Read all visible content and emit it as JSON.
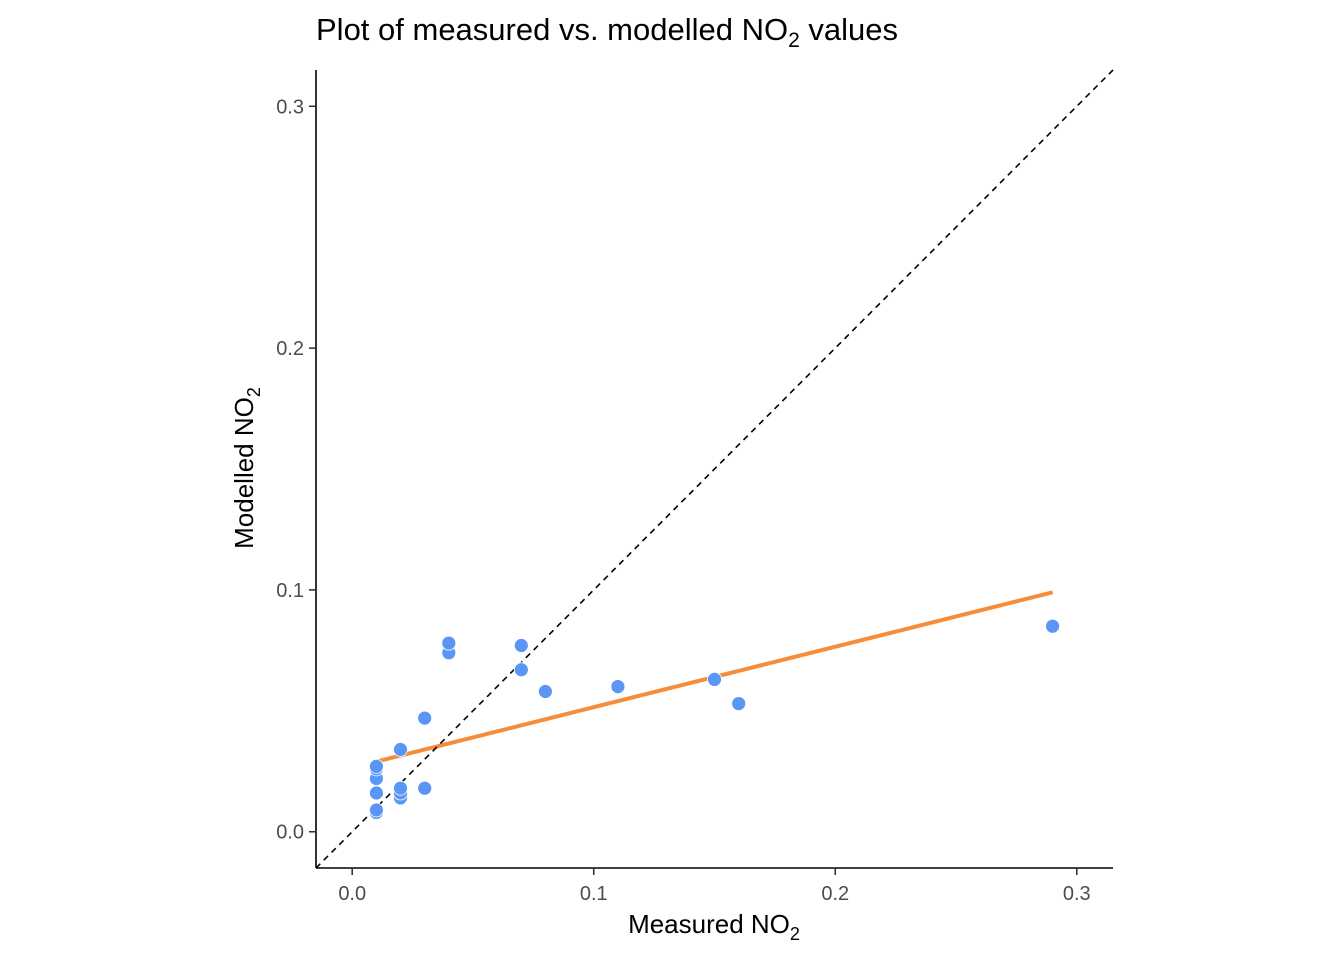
{
  "chart_data": {
    "type": "scatter",
    "title": "Plot of measured vs. modelled NO2 values",
    "title_parts": {
      "main": "Plot of measured vs. modelled NO",
      "sub": "2",
      "tail": " values"
    },
    "xlabel": "Measured NO2",
    "xlabel_parts": {
      "main": "Measured NO",
      "sub": "2"
    },
    "ylabel": "Modelled NO2",
    "ylabel_parts": {
      "main": "Modelled NO",
      "sub": "2"
    },
    "xlim": [
      -0.015,
      0.315
    ],
    "ylim": [
      -0.015,
      0.315
    ],
    "x_ticks": [
      0.0,
      0.1,
      0.2,
      0.3
    ],
    "x_tick_labels": [
      "0.0",
      "0.1",
      "0.2",
      "0.3"
    ],
    "y_ticks": [
      0.0,
      0.1,
      0.2,
      0.3
    ],
    "y_tick_labels": [
      "0.0",
      "0.1",
      "0.2",
      "0.3"
    ],
    "grid": false,
    "series": [
      {
        "type": "scatter",
        "color": "#5B96F7",
        "x": [
          0.01,
          0.01,
          0.01,
          0.01,
          0.01,
          0.01,
          0.02,
          0.02,
          0.02,
          0.02,
          0.03,
          0.03,
          0.04,
          0.04,
          0.07,
          0.07,
          0.08,
          0.11,
          0.15,
          0.16,
          0.29
        ],
        "y": [
          0.008,
          0.009,
          0.016,
          0.022,
          0.026,
          0.027,
          0.014,
          0.016,
          0.018,
          0.034,
          0.018,
          0.047,
          0.074,
          0.078,
          0.067,
          0.077,
          0.058,
          0.06,
          0.063,
          0.053,
          0.085
        ]
      },
      {
        "type": "line",
        "color": "#F58E3C",
        "x": [
          0.01,
          0.29
        ],
        "y": [
          0.029,
          0.099
        ]
      },
      {
        "type": "line",
        "style": "dashed",
        "color": "#000000",
        "x": [
          -0.015,
          0.315
        ],
        "y": [
          -0.015,
          0.315
        ]
      }
    ]
  }
}
